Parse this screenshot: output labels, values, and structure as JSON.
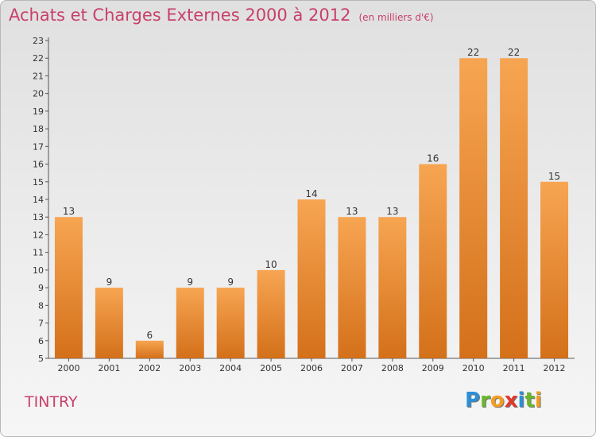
{
  "title": "Achats et Charges Externes 2000 à 2012",
  "unit_label": "(en milliers d'€)",
  "commune": "TINTRY",
  "brand": {
    "letters": [
      "P",
      "r",
      "o",
      "x",
      "i",
      "t",
      "i"
    ],
    "colors": [
      "#2a8fd8",
      "#6bb62c",
      "#f29d22",
      "#e0392b",
      "#2a8fd8",
      "#6bb62c",
      "#f29d22"
    ]
  },
  "colors": {
    "bar_top": "#f7a552",
    "bar_bottom": "#d4701a",
    "title": "#c8406a",
    "axis": "#555555"
  },
  "chart_data": {
    "type": "bar",
    "title": "Achats et Charges Externes 2000 à 2012",
    "subtitle": "(en milliers d'€)",
    "categories": [
      "2000",
      "2001",
      "2002",
      "2003",
      "2004",
      "2005",
      "2006",
      "2007",
      "2008",
      "2009",
      "2010",
      "2011",
      "2012"
    ],
    "values": [
      13,
      9,
      6,
      9,
      9,
      10,
      14,
      13,
      13,
      16,
      22,
      22,
      15
    ],
    "ylim": [
      5,
      23
    ],
    "yticks": [
      5,
      6,
      7,
      8,
      9,
      10,
      11,
      12,
      13,
      14,
      15,
      16,
      17,
      18,
      19,
      20,
      21,
      22,
      23
    ],
    "grid": false,
    "legend": "none"
  }
}
